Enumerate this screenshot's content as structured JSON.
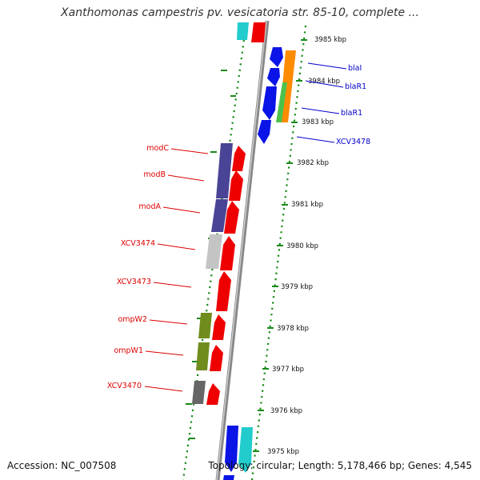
{
  "title": "Xanthomonas campestris pv. vesicatoria str. 85-10, complete ...",
  "accession": "Accession: NC_007508",
  "summary": "Topology: circular; Length: 5,178,466 bp; Genes: 4,545",
  "scale_labels": [
    "3985 kbp",
    "3984 kbp",
    "3983 kbp",
    "3982 kbp",
    "3981 kbp",
    "3980 kbp",
    "3979 kbp",
    "3978 kbp",
    "3977 kbp",
    "3976 kbp",
    "3975 kbp"
  ],
  "genes_right": [
    "blaI",
    "blaR1",
    "blaR1",
    "XCV3478"
  ],
  "genes_left": [
    "modC",
    "modB",
    "modA",
    "XCV3474",
    "XCV3473",
    "ompW2",
    "ompW1",
    "XCV3470"
  ],
  "colors": {
    "right_label": "#0000cc",
    "left_label": "#dd0000",
    "scale_dots": "#1a8a1a",
    "backbone": "#888888",
    "red": "#ee0000",
    "blue": "#0a14e6",
    "navy": "#4a4496",
    "olive": "#6f8c1c",
    "gray": "#666666",
    "light_gray": "#c4c4c4",
    "cyan": "#22cccc",
    "orange": "#ff8c00",
    "green": "#4cc24c"
  }
}
